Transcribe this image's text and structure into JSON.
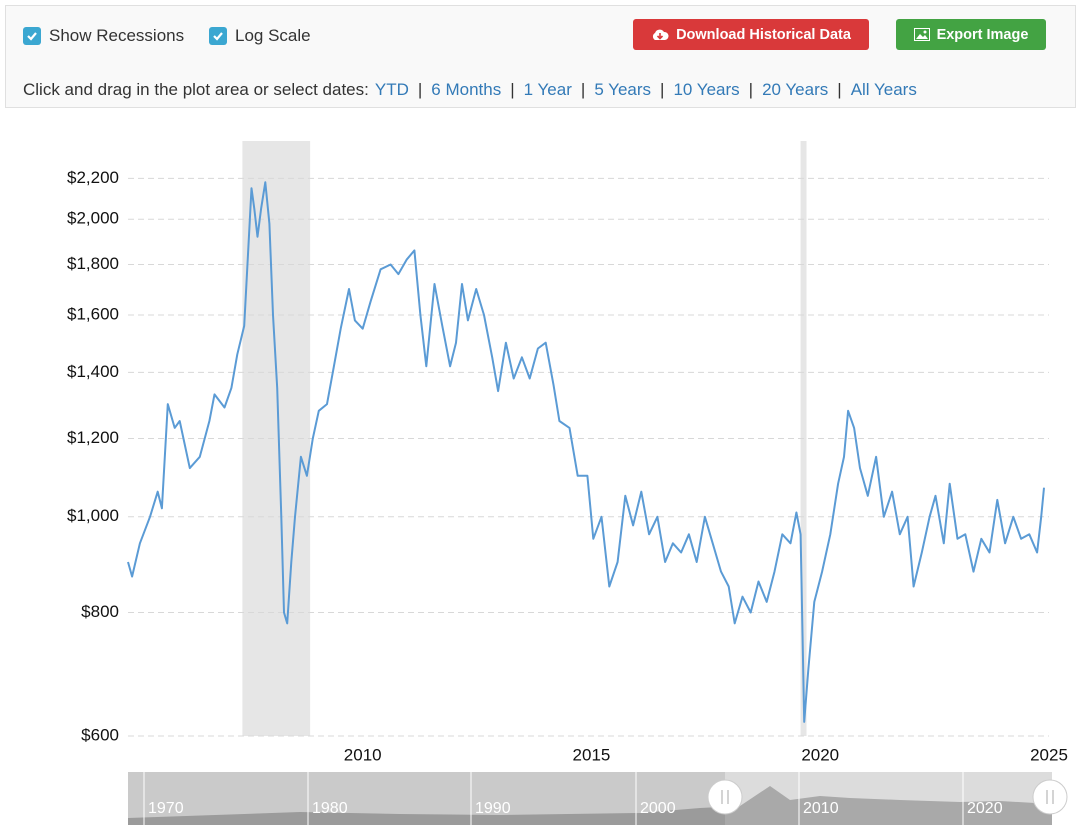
{
  "toolbar": {
    "show_recessions": {
      "label": "Show Recessions",
      "checked": true
    },
    "log_scale": {
      "label": "Log Scale",
      "checked": true
    },
    "download_button": "Download Historical Data",
    "export_button": "Export Image",
    "prompt": "Click and drag in the plot area or select dates:",
    "ranges": [
      "YTD",
      "6 Months",
      "1 Year",
      "5 Years",
      "10 Years",
      "20 Years",
      "All Years"
    ],
    "separator": "|"
  },
  "chart_data": {
    "type": "line",
    "color": "#5b9bd5",
    "log_scale": true,
    "grid": true,
    "xlim": [
      2004.87,
      2025
    ],
    "xticks": [
      2010,
      2015,
      2020,
      2025
    ],
    "ylim": [
      600,
      2400
    ],
    "yticks": [
      {
        "value": 600,
        "label": "$600"
      },
      {
        "value": 800,
        "label": "$800"
      },
      {
        "value": 1000,
        "label": "$1,000"
      },
      {
        "value": 1200,
        "label": "$1,200"
      },
      {
        "value": 1400,
        "label": "$1,400"
      },
      {
        "value": 1600,
        "label": "$1,600"
      },
      {
        "value": 1800,
        "label": "$1,800"
      },
      {
        "value": 2000,
        "label": "$2,000"
      },
      {
        "value": 2200,
        "label": "$2,200"
      }
    ],
    "recessions": [
      [
        2007.37,
        2008.85
      ],
      [
        2019.57,
        2019.7
      ]
    ],
    "x": [
      2004.87,
      2004.96,
      2005.13,
      2005.35,
      2005.52,
      2005.61,
      2005.74,
      2005.89,
      2006.0,
      2006.22,
      2006.44,
      2006.65,
      2006.76,
      2006.98,
      2007.13,
      2007.26,
      2007.41,
      2007.57,
      2007.63,
      2007.7,
      2007.78,
      2007.87,
      2007.96,
      2008.04,
      2008.13,
      2008.22,
      2008.28,
      2008.35,
      2008.44,
      2008.52,
      2008.65,
      2008.78,
      2008.91,
      2009.04,
      2009.22,
      2009.37,
      2009.52,
      2009.7,
      2009.83,
      2010.0,
      2010.17,
      2010.39,
      2010.61,
      2010.78,
      2010.96,
      2011.13,
      2011.26,
      2011.39,
      2011.57,
      2011.74,
      2011.91,
      2012.04,
      2012.17,
      2012.3,
      2012.48,
      2012.65,
      2012.83,
      2012.96,
      2013.13,
      2013.3,
      2013.48,
      2013.65,
      2013.83,
      2014.0,
      2014.17,
      2014.3,
      2014.52,
      2014.7,
      2014.91,
      2015.04,
      2015.22,
      2015.39,
      2015.57,
      2015.74,
      2015.91,
      2016.09,
      2016.26,
      2016.44,
      2016.61,
      2016.78,
      2016.96,
      2017.13,
      2017.3,
      2017.48,
      2017.65,
      2017.83,
      2018.0,
      2018.13,
      2018.3,
      2018.48,
      2018.65,
      2018.83,
      2019.0,
      2019.17,
      2019.35,
      2019.48,
      2019.57,
      2019.65,
      2019.74,
      2019.87,
      2020.04,
      2020.22,
      2020.39,
      2020.52,
      2020.61,
      2020.74,
      2020.87,
      2021.04,
      2021.22,
      2021.39,
      2021.57,
      2021.74,
      2021.91,
      2022.04,
      2022.22,
      2022.39,
      2022.52,
      2022.7,
      2022.83,
      2023.0,
      2023.17,
      2023.35,
      2023.52,
      2023.7,
      2023.87,
      2024.04,
      2024.22,
      2024.39,
      2024.57,
      2024.74,
      2024.83,
      2024.89
    ],
    "values": [
      900,
      870,
      940,
      1000,
      1060,
      1020,
      1300,
      1230,
      1250,
      1120,
      1150,
      1250,
      1330,
      1290,
      1350,
      1460,
      1560,
      2150,
      2050,
      1920,
      2050,
      2180,
      1980,
      1600,
      1350,
      1000,
      800,
      780,
      900,
      1000,
      1150,
      1100,
      1200,
      1280,
      1300,
      1420,
      1550,
      1700,
      1580,
      1550,
      1650,
      1780,
      1800,
      1760,
      1820,
      1860,
      1600,
      1420,
      1720,
      1560,
      1420,
      1500,
      1720,
      1580,
      1700,
      1600,
      1450,
      1340,
      1500,
      1380,
      1450,
      1380,
      1480,
      1500,
      1360,
      1250,
      1230,
      1100,
      1100,
      950,
      1000,
      850,
      900,
      1050,
      980,
      1060,
      960,
      1000,
      900,
      940,
      920,
      960,
      900,
      1000,
      940,
      880,
      850,
      780,
      830,
      800,
      860,
      820,
      880,
      960,
      940,
      1010,
      960,
      620,
      700,
      820,
      880,
      960,
      1080,
      1150,
      1280,
      1230,
      1120,
      1050,
      1150,
      1000,
      1060,
      960,
      1000,
      850,
      920,
      1000,
      1050,
      940,
      1080,
      950,
      960,
      880,
      950,
      920,
      1040,
      940,
      1000,
      950,
      960,
      920,
      1000,
      1070
    ]
  },
  "navigator": {
    "labels": [
      "1970",
      "1980",
      "1990",
      "2000",
      "2010",
      "2020"
    ]
  }
}
